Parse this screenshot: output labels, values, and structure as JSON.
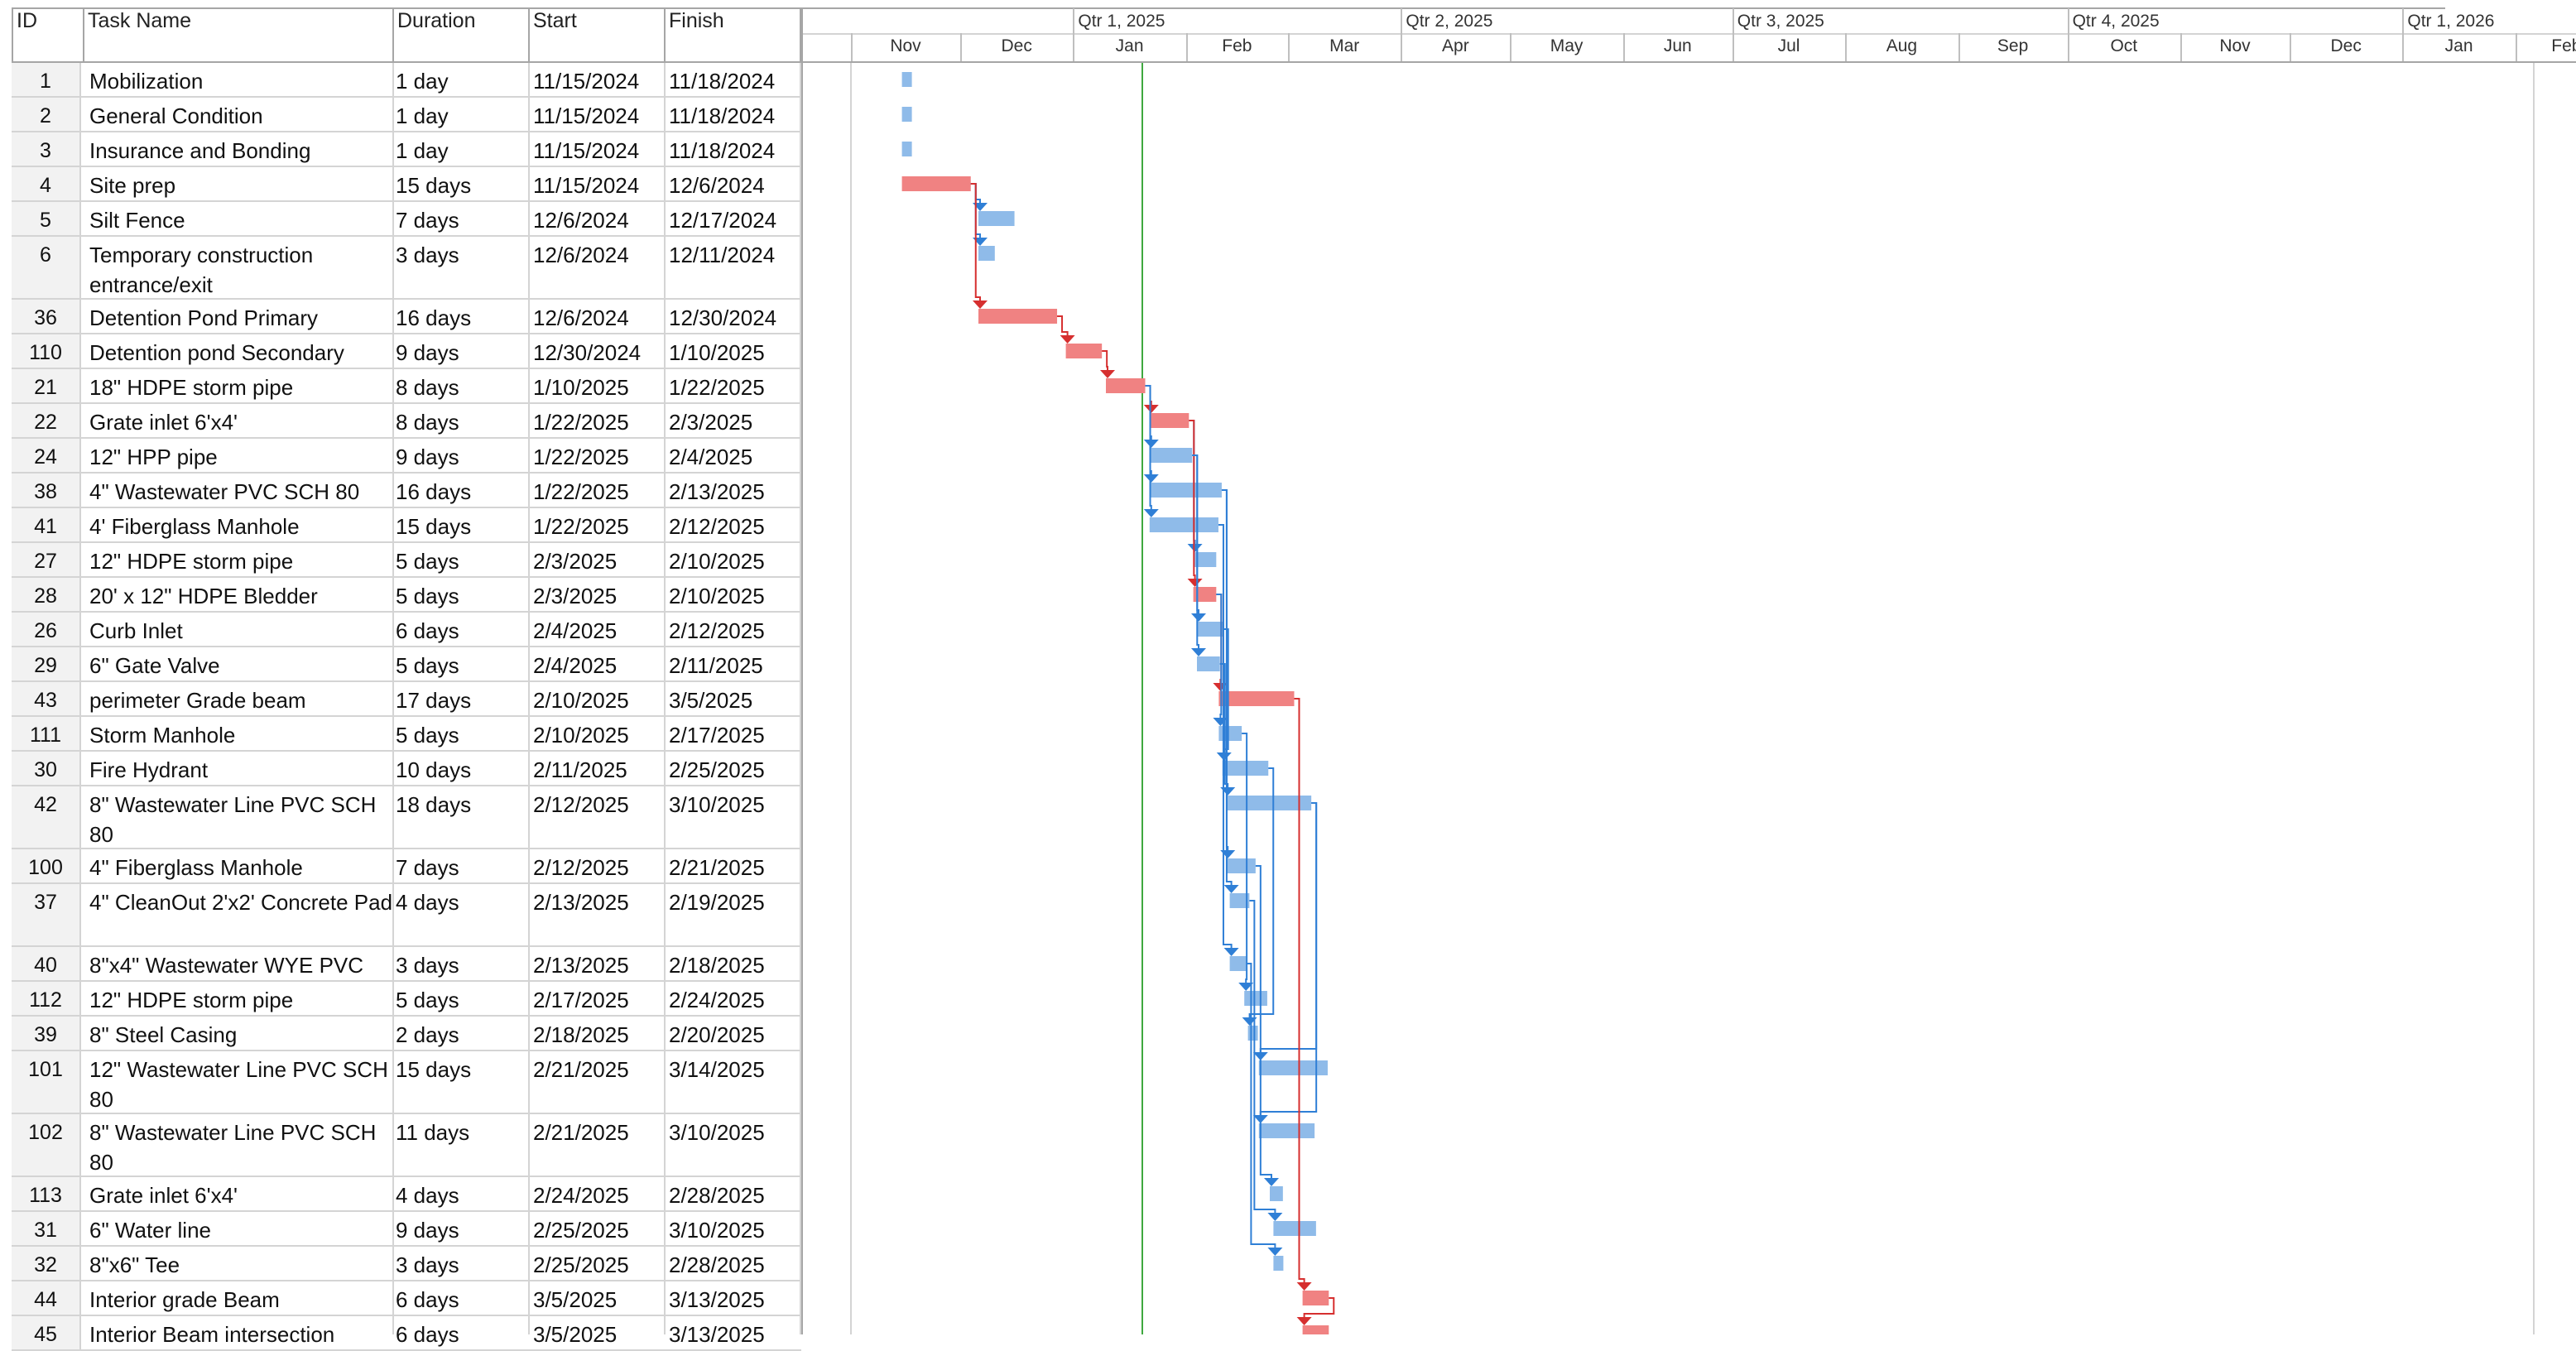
{
  "columns": {
    "id": "ID",
    "name": "Task Name",
    "duration": "Duration",
    "start": "Start",
    "finish": "Finish"
  },
  "timeline": {
    "quarters": [
      "Qtr 1, 2025",
      "Qtr 2, 2025",
      "Qtr 3, 2025",
      "Qtr 4, 2025",
      "Qtr 1, 2026"
    ],
    "months": [
      "Nov",
      "Dec",
      "Jan",
      "Feb",
      "Mar",
      "Apr",
      "May",
      "Jun",
      "Jul",
      "Aug",
      "Sep",
      "Oct",
      "Nov",
      "Dec",
      "Jan",
      "Feb"
    ]
  },
  "colors": {
    "critical": "#f08282",
    "normal": "#8fbbe9",
    "critical_link": "#d62f2f",
    "normal_link": "#2f7fd6",
    "today": "#3fa83f"
  },
  "tasks": [
    {
      "id": "1",
      "name": "Mobilization",
      "duration": "1 day",
      "start": "11/15/2024",
      "finish": "11/18/2024",
      "critical": false,
      "s": "2024-11-15",
      "f": "2024-11-18"
    },
    {
      "id": "2",
      "name": "General Condition",
      "duration": "1 day",
      "start": "11/15/2024",
      "finish": "11/18/2024",
      "critical": false,
      "s": "2024-11-15",
      "f": "2024-11-18"
    },
    {
      "id": "3",
      "name": "Insurance and Bonding",
      "duration": "1 day",
      "start": "11/15/2024",
      "finish": "11/18/2024",
      "critical": false,
      "s": "2024-11-15",
      "f": "2024-11-18"
    },
    {
      "id": "4",
      "name": "Site prep",
      "duration": "15 days",
      "start": "11/15/2024",
      "finish": "12/6/2024",
      "critical": true,
      "s": "2024-11-15",
      "f": "2024-12-06"
    },
    {
      "id": "5",
      "name": "Silt Fence",
      "duration": "7 days",
      "start": "12/6/2024",
      "finish": "12/17/2024",
      "critical": false,
      "s": "2024-12-06",
      "f": "2024-12-17"
    },
    {
      "id": "6",
      "name": "Temporary construction entrance/exit",
      "duration": "3 days",
      "start": "12/6/2024",
      "finish": "12/11/2024",
      "critical": false,
      "s": "2024-12-06",
      "f": "2024-12-11",
      "tall": true
    },
    {
      "id": "36",
      "name": "Detention Pond Primary",
      "duration": "16 days",
      "start": "12/6/2024",
      "finish": "12/30/2024",
      "critical": true,
      "s": "2024-12-06",
      "f": "2024-12-30"
    },
    {
      "id": "110",
      "name": "Detention pond Secondary",
      "duration": "9 days",
      "start": "12/30/2024",
      "finish": "1/10/2025",
      "critical": true,
      "s": "2024-12-30",
      "f": "2025-01-10"
    },
    {
      "id": "21",
      "name": "18\" HDPE storm pipe",
      "duration": "8 days",
      "start": "1/10/2025",
      "finish": "1/22/2025",
      "critical": true,
      "s": "2025-01-10",
      "f": "2025-01-22"
    },
    {
      "id": "22",
      "name": "Grate inlet 6'x4'",
      "duration": "8 days",
      "start": "1/22/2025",
      "finish": "2/3/2025",
      "critical": true,
      "s": "2025-01-22",
      "f": "2025-02-03"
    },
    {
      "id": "24",
      "name": "12\" HPP pipe",
      "duration": "9 days",
      "start": "1/22/2025",
      "finish": "2/4/2025",
      "critical": false,
      "s": "2025-01-22",
      "f": "2025-02-04"
    },
    {
      "id": "38",
      "name": "4\" Wastewater PVC SCH 80",
      "duration": "16 days",
      "start": "1/22/2025",
      "finish": "2/13/2025",
      "critical": false,
      "s": "2025-01-22",
      "f": "2025-02-13"
    },
    {
      "id": "41",
      "name": "4' Fiberglass Manhole",
      "duration": "15 days",
      "start": "1/22/2025",
      "finish": "2/12/2025",
      "critical": false,
      "s": "2025-01-22",
      "f": "2025-02-12"
    },
    {
      "id": "27",
      "name": "12\" HDPE storm pipe",
      "duration": "5 days",
      "start": "2/3/2025",
      "finish": "2/10/2025",
      "critical": false,
      "s": "2025-02-03",
      "f": "2025-02-10"
    },
    {
      "id": "28",
      "name": "20' x 12\" HDPE Bledder",
      "duration": "5 days",
      "start": "2/3/2025",
      "finish": "2/10/2025",
      "critical": true,
      "s": "2025-02-03",
      "f": "2025-02-10"
    },
    {
      "id": "26",
      "name": "Curb Inlet",
      "duration": "6 days",
      "start": "2/4/2025",
      "finish": "2/12/2025",
      "critical": false,
      "s": "2025-02-04",
      "f": "2025-02-12"
    },
    {
      "id": "29",
      "name": "6\" Gate Valve",
      "duration": "5 days",
      "start": "2/4/2025",
      "finish": "2/11/2025",
      "critical": false,
      "s": "2025-02-04",
      "f": "2025-02-11"
    },
    {
      "id": "43",
      "name": "perimeter Grade beam",
      "duration": "17 days",
      "start": "2/10/2025",
      "finish": "3/5/2025",
      "critical": true,
      "s": "2025-02-10",
      "f": "2025-03-05"
    },
    {
      "id": "111",
      "name": "Storm Manhole",
      "duration": "5 days",
      "start": "2/10/2025",
      "finish": "2/17/2025",
      "critical": false,
      "s": "2025-02-10",
      "f": "2025-02-17"
    },
    {
      "id": "30",
      "name": "Fire Hydrant",
      "duration": "10 days",
      "start": "2/11/2025",
      "finish": "2/25/2025",
      "critical": false,
      "s": "2025-02-11",
      "f": "2025-02-25"
    },
    {
      "id": "42",
      "name": "8\" Wastewater Line PVC SCH 80",
      "duration": "18 days",
      "start": "2/12/2025",
      "finish": "3/10/2025",
      "critical": false,
      "s": "2025-02-12",
      "f": "2025-03-10",
      "tall": true
    },
    {
      "id": "100",
      "name": "4\" Fiberglass Manhole",
      "duration": "7 days",
      "start": "2/12/2025",
      "finish": "2/21/2025",
      "critical": false,
      "s": "2025-02-12",
      "f": "2025-02-21"
    },
    {
      "id": "37",
      "name": "4\" CleanOut 2'x2' Concrete Pad",
      "duration": "4 days",
      "start": "2/13/2025",
      "finish": "2/19/2025",
      "critical": false,
      "s": "2025-02-13",
      "f": "2025-02-19",
      "tall": true
    },
    {
      "id": "40",
      "name": "8\"x4\" Wastewater WYE PVC",
      "duration": "3 days",
      "start": "2/13/2025",
      "finish": "2/18/2025",
      "critical": false,
      "s": "2025-02-13",
      "f": "2025-02-18"
    },
    {
      "id": "112",
      "name": "12\" HDPE storm pipe",
      "duration": "5 days",
      "start": "2/17/2025",
      "finish": "2/24/2025",
      "critical": false,
      "s": "2025-02-17",
      "f": "2025-02-24"
    },
    {
      "id": "39",
      "name": "8\" Steel Casing",
      "duration": "2 days",
      "start": "2/18/2025",
      "finish": "2/20/2025",
      "critical": false,
      "s": "2025-02-18",
      "f": "2025-02-20"
    },
    {
      "id": "101",
      "name": "12\" Wastewater Line PVC SCH 80",
      "duration": "15 days",
      "start": "2/21/2025",
      "finish": "3/14/2025",
      "critical": false,
      "s": "2025-02-21",
      "f": "2025-03-14",
      "tall": true
    },
    {
      "id": "102",
      "name": "8\" Wastewater Line PVC SCH 80",
      "duration": "11 days",
      "start": "2/21/2025",
      "finish": "3/10/2025",
      "critical": false,
      "s": "2025-02-21",
      "f": "2025-03-10",
      "tall": true
    },
    {
      "id": "113",
      "name": "Grate inlet 6'x4'",
      "duration": "4 days",
      "start": "2/24/2025",
      "finish": "2/28/2025",
      "critical": false,
      "s": "2025-02-24",
      "f": "2025-02-28"
    },
    {
      "id": "31",
      "name": "6\" Water line",
      "duration": "9 days",
      "start": "2/25/2025",
      "finish": "3/10/2025",
      "critical": false,
      "s": "2025-02-25",
      "f": "2025-03-10"
    },
    {
      "id": "32",
      "name": "8\"x6\" Tee",
      "duration": "3 days",
      "start": "2/25/2025",
      "finish": "2/28/2025",
      "critical": false,
      "s": "2025-02-25",
      "f": "2025-02-28"
    },
    {
      "id": "44",
      "name": "Interior grade Beam",
      "duration": "6 days",
      "start": "3/5/2025",
      "finish": "3/13/2025",
      "critical": true,
      "s": "2025-03-05",
      "f": "2025-03-13"
    },
    {
      "id": "45",
      "name": "Interior Beam intersection",
      "duration": "6 days",
      "start": "3/5/2025",
      "finish": "3/13/2025",
      "critical": true,
      "s": "2025-03-05",
      "f": "2025-03-13"
    }
  ]
}
